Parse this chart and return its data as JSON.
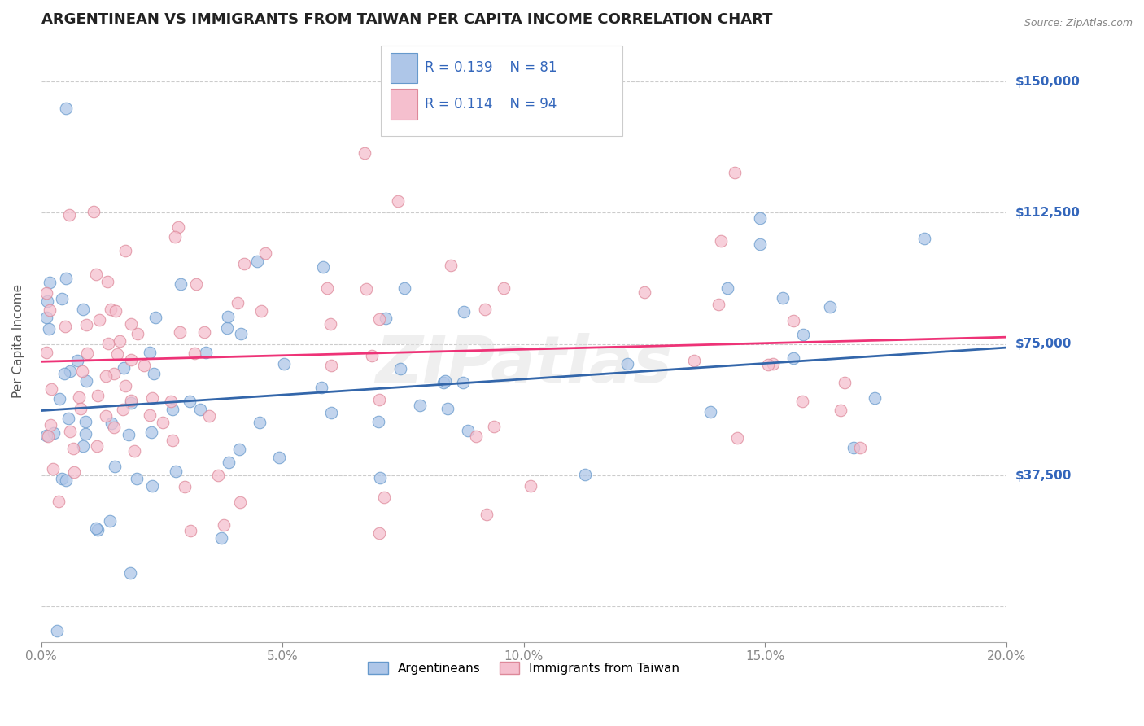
{
  "title": "ARGENTINEAN VS IMMIGRANTS FROM TAIWAN PER CAPITA INCOME CORRELATION CHART",
  "source_text": "Source: ZipAtlas.com",
  "ylabel": "Per Capita Income",
  "xlim": [
    0.0,
    0.2
  ],
  "ylim": [
    -10000,
    162000
  ],
  "yticks": [
    0,
    37500,
    75000,
    112500,
    150000
  ],
  "ytick_labels": [
    "",
    "$37,500",
    "$75,000",
    "$112,500",
    "$150,000"
  ],
  "xticks": [
    0.0,
    0.05,
    0.1,
    0.15,
    0.2
  ],
  "xtick_labels": [
    "0.0%",
    "5.0%",
    "10.0%",
    "15.0%",
    "20.0%"
  ],
  "series1_name": "Argentineans",
  "series1_color": "#aec6e8",
  "series1_edge_color": "#6699cc",
  "series1_R": 0.139,
  "series1_N": 81,
  "series1_line_color": "#3366aa",
  "series2_name": "Immigrants from Taiwan",
  "series2_color": "#f5bfce",
  "series2_edge_color": "#dd8899",
  "series2_R": 0.114,
  "series2_N": 94,
  "series2_line_color": "#ee3377",
  "background_color": "#ffffff",
  "grid_color": "#cccccc",
  "watermark": "ZIPatlas",
  "title_fontsize": 13,
  "axis_label_fontsize": 11,
  "tick_fontsize": 11,
  "legend_box_color_blue": "#aec6e8",
  "legend_box_color_pink": "#f5bfce",
  "stat_label_color": "#3366bb",
  "right_tick_color": "#3366bb",
  "blue_line_y0": 56000,
  "blue_line_y1": 74000,
  "pink_line_y0": 70000,
  "pink_line_y1": 77000
}
